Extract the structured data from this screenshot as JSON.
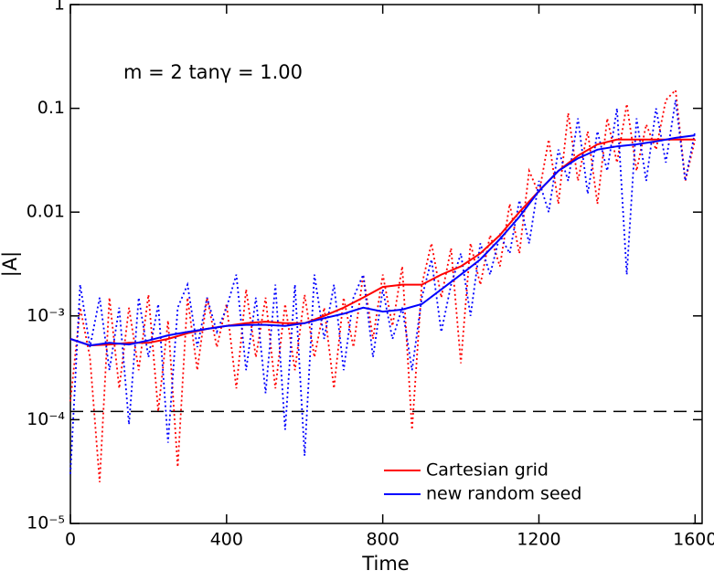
{
  "chart_data": {
    "type": "line",
    "log_y": true,
    "annotation": "m =  2 tanγ =  1.00",
    "xlabel": "Time",
    "ylabel": "|A|",
    "xlim": [
      0,
      1618
    ],
    "xticks": [
      0,
      400,
      800,
      1200,
      1600
    ],
    "ylim": [
      1e-05,
      1
    ],
    "yticks": [
      {
        "value": 1e-05,
        "label": "10⁻⁵"
      },
      {
        "value": 0.0001,
        "label": "10⁻⁴"
      },
      {
        "value": 0.001,
        "label": "10⁻³"
      },
      0.01,
      0.1,
      1
    ],
    "legend": "lower right",
    "hline": {
      "value": 0.00012,
      "color": "#000000",
      "dash": "dashed"
    },
    "series": [
      {
        "color": "#ff0000",
        "dash": "dotted",
        "x": [
          0,
          25,
          50,
          75,
          100,
          125,
          150,
          175,
          200,
          225,
          250,
          275,
          300,
          325,
          350,
          375,
          400,
          425,
          450,
          475,
          500,
          525,
          550,
          575,
          600,
          625,
          650,
          675,
          700,
          725,
          750,
          775,
          800,
          825,
          850,
          875,
          900,
          925,
          950,
          975,
          1000,
          1025,
          1050,
          1075,
          1100,
          1125,
          1150,
          1175,
          1200,
          1225,
          1250,
          1275,
          1300,
          1325,
          1350,
          1375,
          1400,
          1425,
          1450,
          1475,
          1500,
          1525,
          1550,
          1575,
          1600
        ],
        "values": [
          0.00015,
          0.0012,
          0.0004,
          2.5e-05,
          0.0015,
          0.0002,
          0.0012,
          0.0003,
          0.0016,
          0.00012,
          0.0009,
          3.5e-05,
          0.0015,
          0.0003,
          0.0015,
          0.0005,
          0.0013,
          0.0002,
          0.0018,
          0.0004,
          0.0015,
          0.0002,
          0.0013,
          0.0003,
          0.0016,
          0.0004,
          0.0012,
          0.0002,
          0.0015,
          0.0005,
          0.0025,
          0.0006,
          0.0025,
          0.0008,
          0.003,
          8e-05,
          0.002,
          0.005,
          0.0015,
          0.0045,
          0.00035,
          0.005,
          0.002,
          0.006,
          0.003,
          0.012,
          0.004,
          0.025,
          0.015,
          0.05,
          0.012,
          0.09,
          0.02,
          0.06,
          0.012,
          0.08,
          0.03,
          0.11,
          0.025,
          0.07,
          0.04,
          0.12,
          0.15,
          0.02,
          0.05
        ]
      },
      {
        "color": "#0000ff",
        "dash": "dotted",
        "x": [
          0,
          25,
          50,
          75,
          100,
          125,
          150,
          175,
          200,
          225,
          250,
          275,
          300,
          325,
          350,
          375,
          400,
          425,
          450,
          475,
          500,
          525,
          550,
          575,
          600,
          625,
          650,
          675,
          700,
          725,
          750,
          775,
          800,
          825,
          850,
          875,
          900,
          925,
          950,
          975,
          1000,
          1025,
          1050,
          1075,
          1100,
          1125,
          1150,
          1175,
          1200,
          1225,
          1250,
          1275,
          1300,
          1325,
          1350,
          1375,
          1400,
          1425,
          1450,
          1475,
          1500,
          1525,
          1550,
          1575,
          1600
        ],
        "values": [
          3e-05,
          0.002,
          0.0005,
          0.0015,
          0.0003,
          0.0012,
          9e-05,
          0.0015,
          0.0004,
          0.0013,
          6e-05,
          0.0012,
          0.002,
          0.0005,
          0.0015,
          0.0007,
          0.0012,
          0.0025,
          0.0003,
          0.0015,
          0.00018,
          0.002,
          8e-05,
          0.002,
          4.5e-05,
          0.0025,
          0.0006,
          0.002,
          0.0003,
          0.0015,
          0.0025,
          0.0004,
          0.0018,
          0.0006,
          0.0012,
          0.0003,
          0.0015,
          0.0035,
          0.0007,
          0.002,
          0.004,
          0.001,
          0.005,
          0.0025,
          0.006,
          0.004,
          0.013,
          0.005,
          0.02,
          0.01,
          0.04,
          0.02,
          0.08,
          0.015,
          0.06,
          0.025,
          0.1,
          0.0025,
          0.08,
          0.02,
          0.1,
          0.03,
          0.12,
          0.02,
          0.06
        ]
      },
      {
        "name": "Cartesian grid",
        "color": "#ff0000",
        "dash": "solid",
        "x": [
          0,
          50,
          100,
          150,
          200,
          250,
          300,
          350,
          400,
          450,
          500,
          550,
          600,
          650,
          700,
          750,
          800,
          850,
          900,
          950,
          1000,
          1050,
          1100,
          1150,
          1200,
          1250,
          1300,
          1350,
          1400,
          1450,
          1500,
          1550,
          1600
        ],
        "values": [
          0.0006,
          0.00052,
          0.00053,
          0.00055,
          0.00055,
          0.0006,
          0.00068,
          0.00075,
          0.0008,
          0.00085,
          0.00088,
          0.00085,
          0.00085,
          0.001,
          0.0012,
          0.0015,
          0.0019,
          0.002,
          0.002,
          0.0025,
          0.003,
          0.004,
          0.006,
          0.01,
          0.016,
          0.025,
          0.035,
          0.045,
          0.05,
          0.05,
          0.05,
          0.05,
          0.05
        ]
      },
      {
        "name": "new random seed",
        "color": "#0000ff",
        "dash": "solid",
        "x": [
          0,
          50,
          100,
          150,
          200,
          250,
          300,
          350,
          400,
          450,
          500,
          550,
          600,
          650,
          700,
          750,
          800,
          850,
          900,
          950,
          1000,
          1050,
          1100,
          1150,
          1200,
          1250,
          1300,
          1350,
          1400,
          1450,
          1500,
          1550,
          1600
        ],
        "values": [
          0.0006,
          0.00052,
          0.00055,
          0.00053,
          0.00058,
          0.00065,
          0.0007,
          0.00075,
          0.0008,
          0.00082,
          0.00082,
          0.0008,
          0.00085,
          0.00095,
          0.00105,
          0.0012,
          0.0011,
          0.00115,
          0.0013,
          0.0018,
          0.0025,
          0.0035,
          0.0055,
          0.009,
          0.016,
          0.025,
          0.033,
          0.04,
          0.043,
          0.045,
          0.048,
          0.052,
          0.055
        ]
      }
    ]
  }
}
